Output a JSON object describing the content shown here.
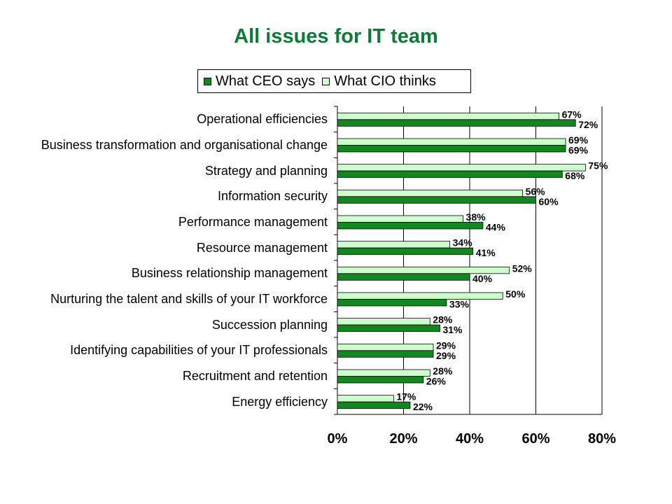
{
  "chart_data": {
    "type": "bar",
    "orientation": "horizontal",
    "title": "All issues for IT team",
    "categories": [
      "Operational efficiencies",
      "Business transformation and organisational change",
      "Strategy and planning",
      "Information security",
      "Performance management",
      "Resource management",
      "Business relationship management",
      "Nurturing the talent and skills of your IT workforce",
      "Succession planning",
      "Identifying capabilities of your IT professionals",
      "Recruitment and retention",
      "Energy efficiency"
    ],
    "series": [
      {
        "name": "What CEO says",
        "color": "#13871f",
        "values": [
          72,
          69,
          68,
          60,
          44,
          41,
          40,
          33,
          31,
          29,
          26,
          22
        ]
      },
      {
        "name": "What CIO thinks",
        "color": "#ccffcc",
        "values": [
          67,
          69,
          75,
          56,
          38,
          34,
          52,
          50,
          28,
          29,
          28,
          17
        ]
      }
    ],
    "xlim": [
      0,
      80
    ],
    "xticks": [
      0,
      20,
      40,
      60,
      80
    ],
    "tick_labels": [
      "0%",
      "20%",
      "40%",
      "60%",
      "80%"
    ],
    "value_suffix": "%",
    "grid": true,
    "legend_position": "top"
  }
}
